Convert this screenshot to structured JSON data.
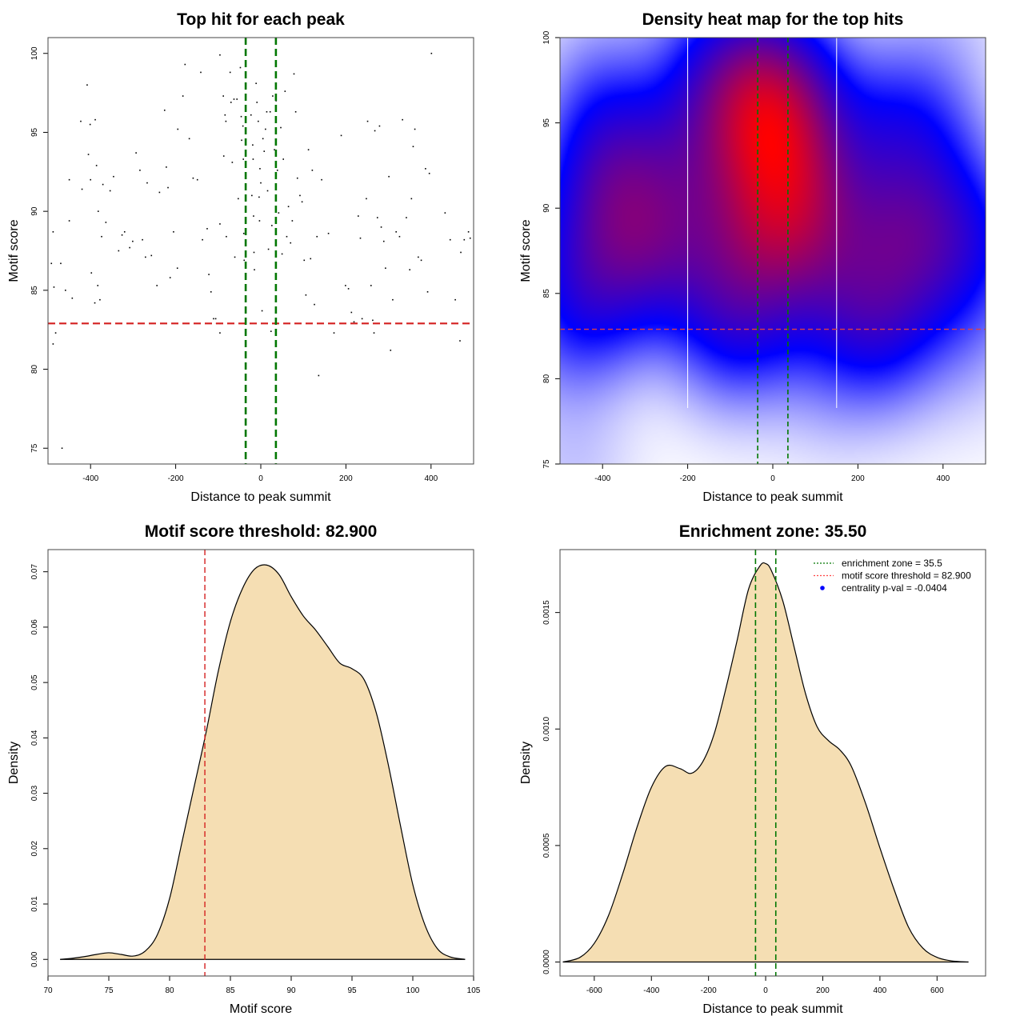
{
  "chart_data": [
    {
      "id": "scatter",
      "type": "scatter",
      "title": "Top hit for each peak",
      "xlabel": "Distance to peak summit",
      "ylabel": "Motif score",
      "xlim": [
        -500,
        500
      ],
      "ylim": [
        74,
        101
      ],
      "xticks": [
        -400,
        -200,
        0,
        200,
        400
      ],
      "yticks": [
        75,
        80,
        85,
        90,
        95,
        100
      ],
      "xtick_labels": [
        "-400",
        "-200",
        "0",
        "200",
        "400"
      ],
      "ytick_labels": [
        "75",
        "80",
        "85",
        "90",
        "95",
        "100"
      ],
      "threshold_y": 82.9,
      "zone_x": [
        -35.5,
        35.5
      ],
      "points": [
        [
          -488,
          88.7
        ],
        [
          -492,
          86.7
        ],
        [
          -470,
          86.7
        ],
        [
          -486,
          85.2
        ],
        [
          -488,
          81.6
        ],
        [
          -482,
          82.3
        ],
        [
          -467,
          75.0
        ],
        [
          -459,
          85.0
        ],
        [
          -450,
          89.4
        ],
        [
          -443,
          84.5
        ],
        [
          -450,
          92.0
        ],
        [
          -423,
          95.7
        ],
        [
          -420,
          91.4
        ],
        [
          -408,
          98.0
        ],
        [
          -401,
          95.5
        ],
        [
          -389,
          95.8
        ],
        [
          -386,
          92.9
        ],
        [
          -405,
          93.6
        ],
        [
          -400,
          92.0
        ],
        [
          -398,
          86.1
        ],
        [
          -390,
          84.2
        ],
        [
          -383,
          85.3
        ],
        [
          -378,
          84.4
        ],
        [
          -382,
          90.0
        ],
        [
          -374,
          88.4
        ],
        [
          -371,
          91.7
        ],
        [
          -364,
          89.3
        ],
        [
          -354,
          91.3
        ],
        [
          -346,
          92.2
        ],
        [
          -334,
          87.5
        ],
        [
          -326,
          88.5
        ],
        [
          -320,
          88.7
        ],
        [
          -308,
          87.7
        ],
        [
          -301,
          88.1
        ],
        [
          -293,
          93.7
        ],
        [
          -284,
          92.6
        ],
        [
          -278,
          88.2
        ],
        [
          -267,
          91.8
        ],
        [
          -271,
          87.1
        ],
        [
          -257,
          87.2
        ],
        [
          -244,
          85.3
        ],
        [
          -238,
          91.2
        ],
        [
          -226,
          96.4
        ],
        [
          -222,
          92.8
        ],
        [
          -218,
          91.5
        ],
        [
          -213,
          85.8
        ],
        [
          -205,
          88.7
        ],
        [
          -196,
          86.4
        ],
        [
          -195,
          95.2
        ],
        [
          -183,
          97.3
        ],
        [
          -178,
          99.3
        ],
        [
          -168,
          94.6
        ],
        [
          -159,
          92.1
        ],
        [
          -149,
          92.0
        ],
        [
          -141,
          98.8
        ],
        [
          -137,
          88.2
        ],
        [
          -126,
          88.9
        ],
        [
          -122,
          86.0
        ],
        [
          -117,
          84.9
        ],
        [
          -111,
          83.2
        ],
        [
          -106,
          83.2
        ],
        [
          -104,
          82.9
        ],
        [
          -96,
          99.9
        ],
        [
          -96,
          89.2
        ],
        [
          -96,
          82.9
        ],
        [
          -96,
          82.3
        ],
        [
          -88,
          97.3
        ],
        [
          -87,
          93.5
        ],
        [
          -84,
          96.1
        ],
        [
          -82,
          95.7
        ],
        [
          -81,
          88.4
        ],
        [
          -72,
          98.8
        ],
        [
          -70,
          96.9
        ],
        [
          -67,
          93.1
        ],
        [
          -63,
          97.1
        ],
        [
          -61,
          87.1
        ],
        [
          -56,
          97.1
        ],
        [
          -53,
          90.8
        ],
        [
          -48,
          99.1
        ],
        [
          -46,
          96.0
        ],
        [
          -45,
          94.5
        ],
        [
          -42,
          95.4
        ],
        [
          -41,
          93.3
        ],
        [
          -40,
          88.6
        ],
        [
          -39,
          86.9
        ],
        [
          -37,
          82.9
        ],
        [
          -23,
          96.1
        ],
        [
          -21,
          91.0
        ],
        [
          -19,
          94.2
        ],
        [
          -18,
          93.3
        ],
        [
          -17,
          89.7
        ],
        [
          -16,
          87.4
        ],
        [
          -15,
          86.3
        ],
        [
          -11,
          98.1
        ],
        [
          -9,
          96.9
        ],
        [
          -6,
          95.7
        ],
        [
          -4,
          90.9
        ],
        [
          -3,
          89.4
        ],
        [
          -2,
          92.7
        ],
        [
          0,
          91.8
        ],
        [
          3,
          83.7
        ],
        [
          5,
          94.6
        ],
        [
          8,
          93.8
        ],
        [
          11,
          95.2
        ],
        [
          14,
          96.3
        ],
        [
          16,
          91.3
        ],
        [
          18,
          87.6
        ],
        [
          22,
          96.3
        ],
        [
          24,
          82.4
        ],
        [
          26,
          89.1
        ],
        [
          28,
          97.3
        ],
        [
          32,
          93.9
        ],
        [
          36,
          97.0
        ],
        [
          39,
          92.6
        ],
        [
          42,
          89.9
        ],
        [
          47,
          95.3
        ],
        [
          50,
          87.3
        ],
        [
          53,
          93.3
        ],
        [
          57,
          97.6
        ],
        [
          61,
          88.4
        ],
        [
          65,
          90.3
        ],
        [
          70,
          88.0
        ],
        [
          74,
          89.4
        ],
        [
          78,
          98.7
        ],
        [
          82,
          96.3
        ],
        [
          86,
          92.1
        ],
        [
          92,
          91.0
        ],
        [
          97,
          90.6
        ],
        [
          102,
          86.9
        ],
        [
          106,
          84.7
        ],
        [
          112,
          93.9
        ],
        [
          117,
          87.0
        ],
        [
          121,
          92.6
        ],
        [
          126,
          84.1
        ],
        [
          132,
          88.4
        ],
        [
          136,
          79.6
        ],
        [
          143,
          92.0
        ],
        [
          159,
          88.6
        ],
        [
          172,
          82.3
        ],
        [
          189,
          94.8
        ],
        [
          199,
          85.3
        ],
        [
          206,
          85.1
        ],
        [
          213,
          83.6
        ],
        [
          219,
          83.0
        ],
        [
          229,
          89.7
        ],
        [
          234,
          88.3
        ],
        [
          238,
          83.2
        ],
        [
          248,
          90.8
        ],
        [
          251,
          95.7
        ],
        [
          259,
          85.3
        ],
        [
          263,
          83.1
        ],
        [
          266,
          82.3
        ],
        [
          268,
          95.1
        ],
        [
          274,
          89.6
        ],
        [
          279,
          95.4
        ],
        [
          283,
          89.0
        ],
        [
          289,
          88.1
        ],
        [
          293,
          86.4
        ],
        [
          301,
          92.2
        ],
        [
          305,
          81.2
        ],
        [
          310,
          84.4
        ],
        [
          318,
          88.7
        ],
        [
          326,
          88.4
        ],
        [
          333,
          95.8
        ],
        [
          342,
          89.6
        ],
        [
          350,
          86.3
        ],
        [
          354,
          90.8
        ],
        [
          358,
          94.1
        ],
        [
          362,
          95.2
        ],
        [
          370,
          87.1
        ],
        [
          377,
          86.9
        ],
        [
          387,
          92.7
        ],
        [
          392,
          84.9
        ],
        [
          396,
          92.4
        ],
        [
          433,
          89.9
        ],
        [
          445,
          88.2
        ],
        [
          457,
          84.4
        ],
        [
          468,
          81.8
        ],
        [
          470,
          87.4
        ],
        [
          478,
          88.2
        ],
        [
          488,
          88.7
        ],
        [
          492,
          88.3
        ],
        [
          401,
          100.0
        ]
      ]
    },
    {
      "id": "heatmap",
      "type": "heatmap",
      "title": "Density heat map for the top hits",
      "xlabel": "Distance to peak summit",
      "ylabel": "Motif score",
      "xlim": [
        -500,
        500
      ],
      "ylim": [
        75,
        100
      ],
      "xticks": [
        -400,
        -200,
        0,
        200,
        400
      ],
      "yticks": [
        75,
        80,
        85,
        90,
        95,
        100
      ],
      "xtick_labels": [
        "-400",
        "-200",
        "0",
        "200",
        "400"
      ],
      "ytick_labels": [
        "75",
        "80",
        "85",
        "90",
        "95",
        "100"
      ],
      "threshold_y": 82.9,
      "zone_x": [
        -35.5,
        35.5
      ],
      "white_lines_x": [
        -200,
        150
      ],
      "colors": [
        "#ffffff",
        "#0000ff",
        "#ff0000"
      ]
    },
    {
      "id": "score-density",
      "type": "area",
      "title": "Motif score threshold: 82.900",
      "xlabel": "Motif score",
      "ylabel": "Density",
      "xlim": [
        70,
        105
      ],
      "ylim": [
        -0.003,
        0.074
      ],
      "xticks": [
        70,
        75,
        80,
        85,
        90,
        95,
        100,
        105
      ],
      "yticks": [
        0.0,
        0.01,
        0.02,
        0.03,
        0.04,
        0.05,
        0.06,
        0.07
      ],
      "xtick_labels": [
        "70",
        "75",
        "80",
        "85",
        "90",
        "95",
        "100",
        "105"
      ],
      "ytick_labels": [
        "0.00",
        "0.01",
        "0.02",
        "0.03",
        "0.04",
        "0.05",
        "0.06",
        "0.07"
      ],
      "threshold_x": 82.9,
      "fill": "#f5deb3",
      "x": [
        71,
        72,
        73,
        74,
        75,
        76,
        77,
        78,
        79,
        80,
        81,
        82,
        83,
        84,
        85,
        86,
        87,
        88,
        89,
        90,
        91,
        92,
        93,
        94,
        95,
        96,
        97,
        98,
        99,
        100,
        101,
        102,
        103,
        104.3
      ],
      "y": [
        0.0,
        0.0002,
        0.0005,
        0.0009,
        0.0012,
        0.0009,
        0.0006,
        0.0015,
        0.0045,
        0.011,
        0.021,
        0.031,
        0.041,
        0.052,
        0.061,
        0.067,
        0.0705,
        0.0712,
        0.0695,
        0.0655,
        0.062,
        0.0595,
        0.0565,
        0.0535,
        0.0525,
        0.0505,
        0.0445,
        0.035,
        0.024,
        0.0135,
        0.0062,
        0.002,
        0.0005,
        0.0
      ]
    },
    {
      "id": "distance-density",
      "type": "area",
      "title": "Enrichment zone: 35.50",
      "xlabel": "Distance to peak summit",
      "ylabel": "Density",
      "xlim": [
        -720,
        770
      ],
      "ylim": [
        -6e-05,
        0.00177
      ],
      "xticks": [
        -600,
        -400,
        -200,
        0,
        200,
        400,
        600
      ],
      "yticks": [
        0.0,
        0.0005,
        0.001,
        0.0015
      ],
      "xtick_labels": [
        "-600",
        "-400",
        "-200",
        "0",
        "200",
        "400",
        "600"
      ],
      "ytick_labels": [
        "0.0000",
        "0.0005",
        "0.0010",
        "0.0015"
      ],
      "zone_x": [
        -35.5,
        35.5
      ],
      "fill": "#f5deb3",
      "x": [
        -710,
        -650,
        -600,
        -550,
        -500,
        -450,
        -400,
        -350,
        -300,
        -260,
        -220,
        -180,
        -140,
        -100,
        -60,
        -20,
        0,
        20,
        60,
        100,
        140,
        180,
        220,
        260,
        300,
        350,
        400,
        450,
        500,
        550,
        600,
        650,
        710
      ],
      "y": [
        0.0,
        2e-05,
        8e-05,
        0.0002,
        0.00038,
        0.00058,
        0.00075,
        0.00084,
        0.00083,
        0.00081,
        0.00086,
        0.00098,
        0.00117,
        0.00138,
        0.0016,
        0.0017,
        0.00171,
        0.00168,
        0.00155,
        0.00135,
        0.00115,
        0.00101,
        0.00095,
        0.00091,
        0.00084,
        0.00068,
        0.00049,
        0.00031,
        0.00015,
        6e-05,
        2e-05,
        5e-06,
        0.0
      ]
    }
  ],
  "legend": {
    "items": [
      {
        "label": "enrichment zone = 35.5",
        "color": "#007700",
        "symbol": "dotted-line"
      },
      {
        "label": "motif score threshold = 82.900",
        "color": "#ff4444",
        "symbol": "dotted-line"
      },
      {
        "label": "centrality p-val = -0.0404",
        "color": "#0000ff",
        "symbol": "dot"
      }
    ]
  },
  "colors": {
    "threshold": "#d42020",
    "zone": "#007700",
    "fill": "#f5deb3",
    "frame": "#444444"
  }
}
